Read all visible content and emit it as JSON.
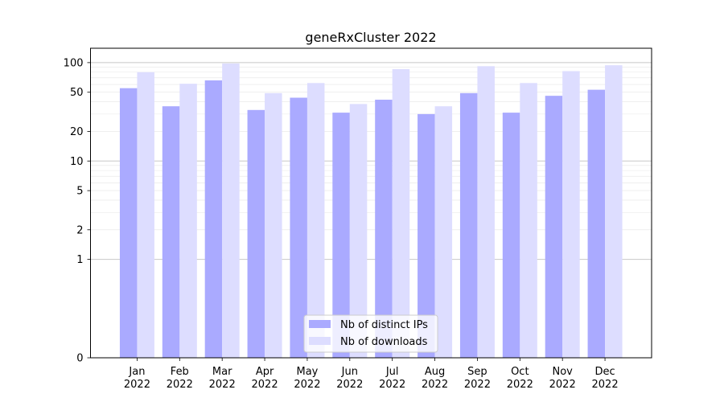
{
  "chart_data": {
    "type": "bar",
    "title": "geneRxCluster 2022",
    "xlabel": "",
    "ylabel": "",
    "y_scale": "symlog",
    "ylim": [
      0,
      140
    ],
    "categories": [
      "Jan\n2022",
      "Feb\n2022",
      "Mar\n2022",
      "Apr\n2022",
      "May\n2022",
      "Jun\n2022",
      "Jul\n2022",
      "Aug\n2022",
      "Sep\n2022",
      "Oct\n2022",
      "Nov\n2022",
      "Dec\n2022"
    ],
    "series": [
      {
        "name": "Nb of distinct IPs",
        "color": "#aaaaff",
        "values": [
          55,
          36,
          66,
          33,
          44,
          31,
          42,
          30,
          49,
          31,
          46,
          53
        ]
      },
      {
        "name": "Nb of downloads",
        "color": "#ddddff",
        "values": [
          80,
          61,
          98,
          49,
          62,
          38,
          86,
          36,
          92,
          62,
          82,
          94
        ]
      }
    ],
    "y_ticks": [
      0,
      1,
      2,
      5,
      10,
      20,
      50,
      100
    ],
    "grid": true,
    "legend_position": "lower center"
  }
}
